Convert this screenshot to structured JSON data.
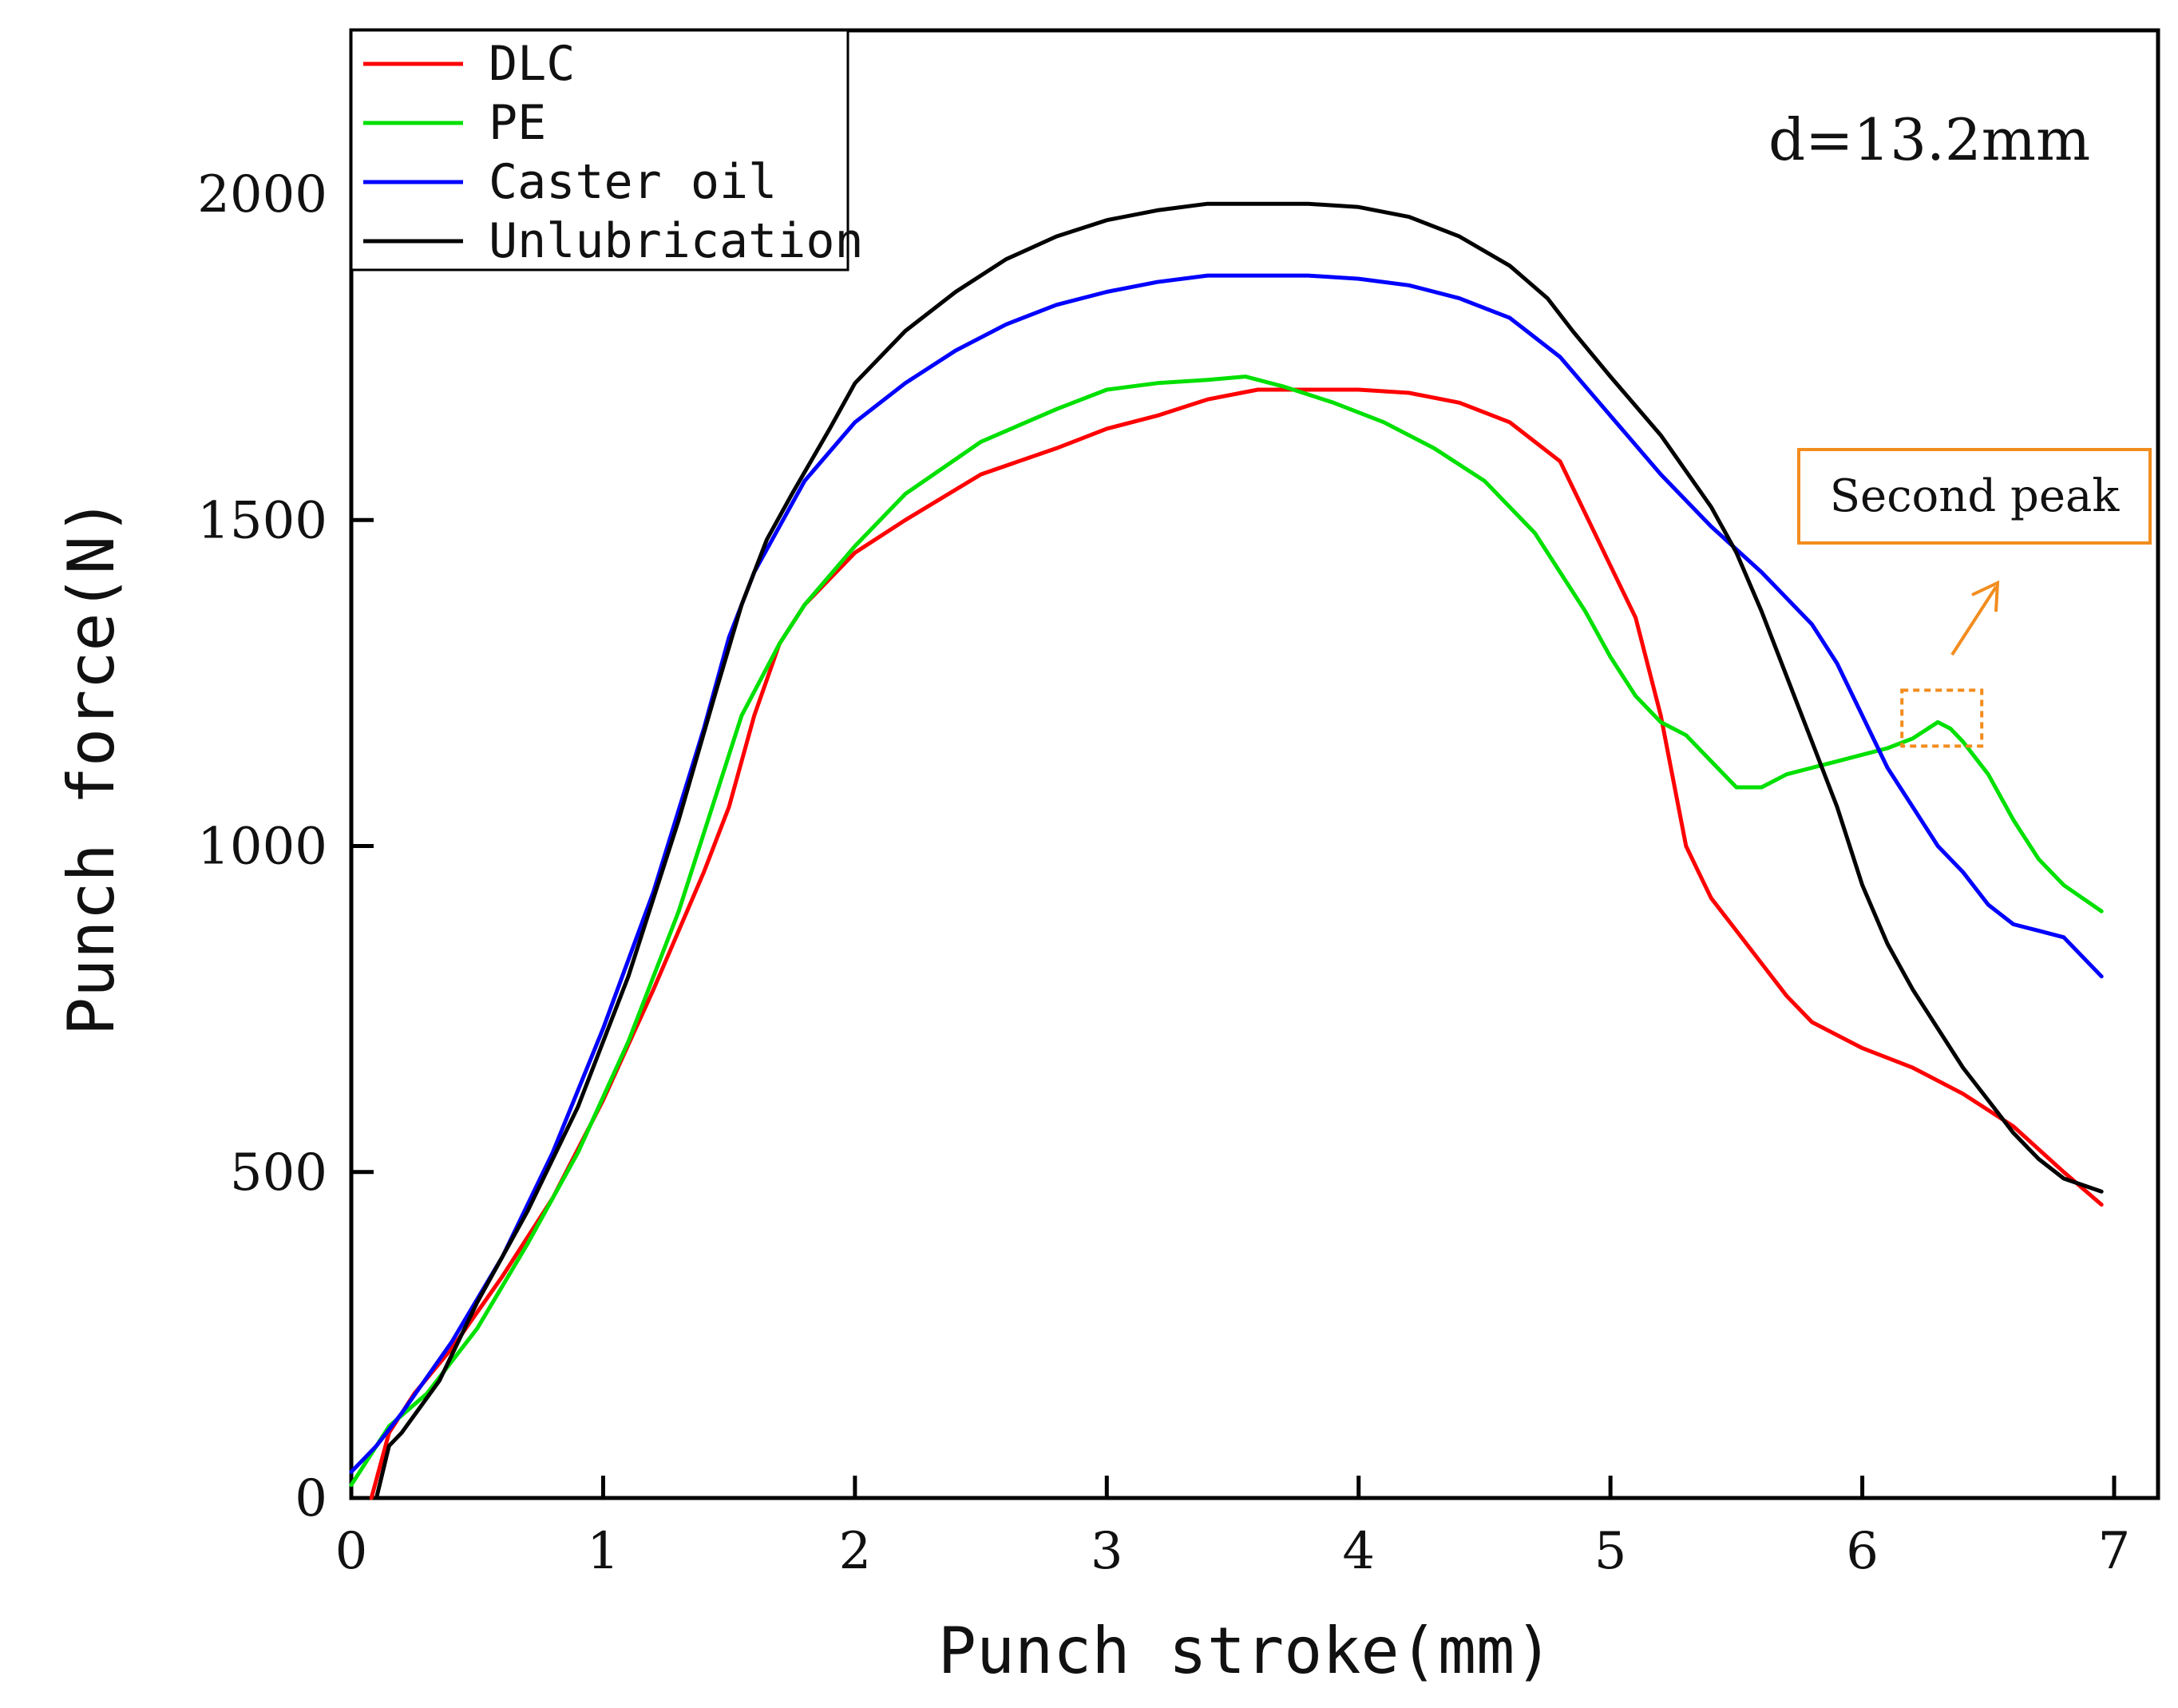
{
  "chart_data": {
    "type": "line",
    "title": "",
    "xlabel": "Punch stroke(mm)",
    "ylabel": "Punch force(N)",
    "xlim": [
      0,
      7.2
    ],
    "ylim": [
      0,
      2250
    ],
    "xticks": [
      0,
      1,
      2,
      3,
      4,
      5,
      6,
      7
    ],
    "yticks": [
      0,
      500,
      1000,
      1500,
      2000
    ],
    "annotation": "d=13.2mm",
    "callout": {
      "label": "Second peak",
      "target_x": 6.3,
      "target_y": 1190
    },
    "legend_position": "top-left",
    "series": [
      {
        "name": "DLC",
        "color": "#ff0000",
        "x": [
          0.08,
          0.15,
          0.25,
          0.4,
          0.6,
          0.8,
          1.0,
          1.2,
          1.4,
          1.5,
          1.6,
          1.7,
          1.8,
          2.0,
          2.2,
          2.5,
          2.8,
          3.0,
          3.2,
          3.4,
          3.6,
          3.8,
          4.0,
          4.2,
          4.4,
          4.6,
          4.8,
          5.0,
          5.1,
          5.2,
          5.25,
          5.3,
          5.35,
          5.4,
          5.5,
          5.6,
          5.7,
          5.8,
          6.0,
          6.2,
          6.4,
          6.6,
          6.8,
          6.95
        ],
        "y": [
          0,
          100,
          160,
          230,
          340,
          460,
          610,
          780,
          960,
          1060,
          1200,
          1310,
          1370,
          1450,
          1500,
          1570,
          1610,
          1640,
          1660,
          1685,
          1700,
          1700,
          1700,
          1695,
          1680,
          1650,
          1590,
          1430,
          1350,
          1200,
          1100,
          1000,
          960,
          920,
          870,
          820,
          770,
          730,
          690,
          660,
          620,
          570,
          500,
          450
        ]
      },
      {
        "name": "PE",
        "color": "#00e000",
        "x": [
          0.0,
          0.15,
          0.3,
          0.5,
          0.7,
          0.9,
          1.1,
          1.3,
          1.45,
          1.55,
          1.7,
          1.8,
          2.0,
          2.2,
          2.5,
          2.8,
          3.0,
          3.2,
          3.4,
          3.55,
          3.7,
          3.9,
          4.1,
          4.3,
          4.5,
          4.7,
          4.9,
          5.0,
          5.1,
          5.2,
          5.3,
          5.4,
          5.5,
          5.6,
          5.7,
          5.8,
          5.9,
          6.0,
          6.1,
          6.2,
          6.3,
          6.35,
          6.4,
          6.5,
          6.6,
          6.7,
          6.8,
          6.95
        ],
        "y": [
          20,
          110,
          160,
          260,
          390,
          530,
          700,
          900,
          1080,
          1200,
          1310,
          1370,
          1460,
          1540,
          1620,
          1670,
          1700,
          1710,
          1715,
          1720,
          1705,
          1680,
          1650,
          1610,
          1560,
          1480,
          1360,
          1290,
          1230,
          1190,
          1170,
          1130,
          1090,
          1090,
          1110,
          1120,
          1130,
          1140,
          1150,
          1165,
          1190,
          1180,
          1160,
          1110,
          1040,
          980,
          940,
          900
        ]
      },
      {
        "name": "Caster oil",
        "color": "#0000ff",
        "x": [
          0.0,
          0.1,
          0.2,
          0.4,
          0.6,
          0.8,
          1.0,
          1.2,
          1.4,
          1.5,
          1.6,
          1.7,
          1.8,
          2.0,
          2.2,
          2.4,
          2.6,
          2.8,
          3.0,
          3.2,
          3.4,
          3.6,
          3.8,
          4.0,
          4.2,
          4.4,
          4.6,
          4.8,
          5.0,
          5.2,
          5.4,
          5.6,
          5.8,
          5.9,
          6.0,
          6.1,
          6.2,
          6.3,
          6.4,
          6.5,
          6.6,
          6.7,
          6.8,
          6.95
        ],
        "y": [
          40,
          80,
          130,
          240,
          370,
          530,
          720,
          930,
          1180,
          1320,
          1420,
          1490,
          1560,
          1650,
          1710,
          1760,
          1800,
          1830,
          1850,
          1865,
          1875,
          1875,
          1875,
          1870,
          1860,
          1840,
          1810,
          1750,
          1660,
          1570,
          1490,
          1420,
          1340,
          1280,
          1200,
          1120,
          1060,
          1000,
          960,
          910,
          880,
          870,
          860,
          800
        ]
      },
      {
        "name": "Unlubrication",
        "color": "#000000",
        "x": [
          0.1,
          0.15,
          0.2,
          0.35,
          0.5,
          0.7,
          0.9,
          1.1,
          1.3,
          1.45,
          1.55,
          1.65,
          1.75,
          1.9,
          2.0,
          2.2,
          2.4,
          2.6,
          2.8,
          3.0,
          3.2,
          3.4,
          3.6,
          3.8,
          4.0,
          4.2,
          4.4,
          4.6,
          4.75,
          4.85,
          5.0,
          5.2,
          5.4,
          5.5,
          5.6,
          5.7,
          5.8,
          5.9,
          6.0,
          6.1,
          6.2,
          6.3,
          6.4,
          6.5,
          6.6,
          6.7,
          6.8,
          6.95
        ],
        "y": [
          0,
          80,
          100,
          180,
          300,
          440,
          600,
          800,
          1040,
          1240,
          1370,
          1470,
          1540,
          1640,
          1710,
          1790,
          1850,
          1900,
          1935,
          1960,
          1975,
          1985,
          1985,
          1985,
          1980,
          1965,
          1935,
          1890,
          1840,
          1790,
          1720,
          1630,
          1520,
          1450,
          1360,
          1260,
          1160,
          1060,
          940,
          850,
          780,
          720,
          660,
          610,
          560,
          520,
          490,
          470
        ]
      }
    ]
  }
}
